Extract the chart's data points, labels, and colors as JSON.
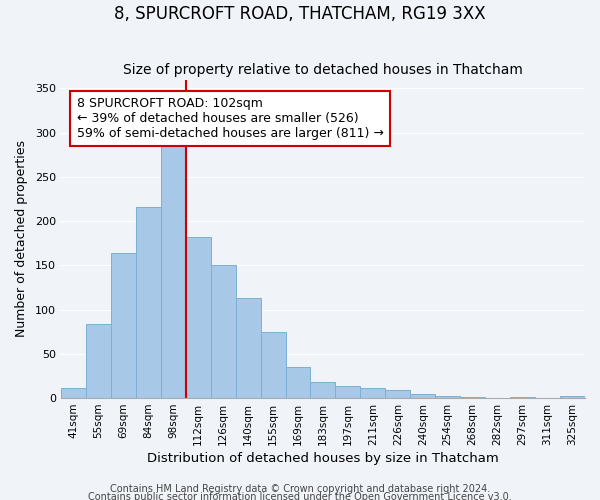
{
  "title": "8, SPURCROFT ROAD, THATCHAM, RG19 3XX",
  "subtitle": "Size of property relative to detached houses in Thatcham",
  "xlabel": "Distribution of detached houses by size in Thatcham",
  "ylabel": "Number of detached properties",
  "bin_labels": [
    "41sqm",
    "55sqm",
    "69sqm",
    "84sqm",
    "98sqm",
    "112sqm",
    "126sqm",
    "140sqm",
    "155sqm",
    "169sqm",
    "183sqm",
    "197sqm",
    "211sqm",
    "226sqm",
    "240sqm",
    "254sqm",
    "268sqm",
    "282sqm",
    "297sqm",
    "311sqm",
    "325sqm"
  ],
  "bar_values": [
    11,
    84,
    164,
    216,
    287,
    182,
    150,
    113,
    75,
    35,
    18,
    14,
    11,
    9,
    5,
    2,
    1,
    0,
    1,
    0,
    2
  ],
  "bar_color": "#a8c8e8",
  "bar_edge_color": "#7ab0d4",
  "vline_x_index": 4.5,
  "vline_color": "#cc0000",
  "annotation_text": "8 SPURCROFT ROAD: 102sqm\n← 39% of detached houses are smaller (526)\n59% of semi-detached houses are larger (811) →",
  "annotation_box_color": "#ffffff",
  "annotation_box_edge": "#cc0000",
  "ylim": [
    0,
    360
  ],
  "yticks": [
    0,
    50,
    100,
    150,
    200,
    250,
    300,
    350
  ],
  "footer1": "Contains HM Land Registry data © Crown copyright and database right 2024.",
  "footer2": "Contains public sector information licensed under the Open Government Licence v3.0.",
  "background_color": "#f0f4f8",
  "title_fontsize": 12,
  "subtitle_fontsize": 10,
  "xlabel_fontsize": 9.5,
  "ylabel_fontsize": 9,
  "annotation_fontsize": 9,
  "footer_fontsize": 7
}
